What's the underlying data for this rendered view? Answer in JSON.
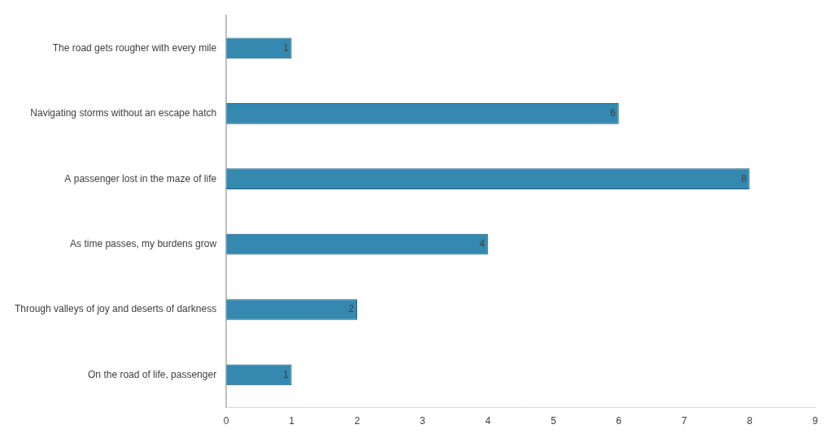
{
  "chart_data": {
    "type": "bar",
    "orientation": "horizontal",
    "categories": [
      "The road gets rougher with every mile",
      "Navigating storms without an escape hatch",
      "A passenger lost in the maze of life",
      "As time passes, my burdens grow",
      "Through valleys of joy and deserts of darkness",
      "On the road of life, passenger"
    ],
    "values": [
      1,
      6,
      8,
      4,
      2,
      1
    ],
    "color": "#3589b0",
    "xlim": [
      0,
      9
    ],
    "xticks": [
      0,
      1,
      2,
      3,
      4,
      5,
      6,
      7,
      8,
      9
    ],
    "grid": false,
    "data_labels": true
  }
}
